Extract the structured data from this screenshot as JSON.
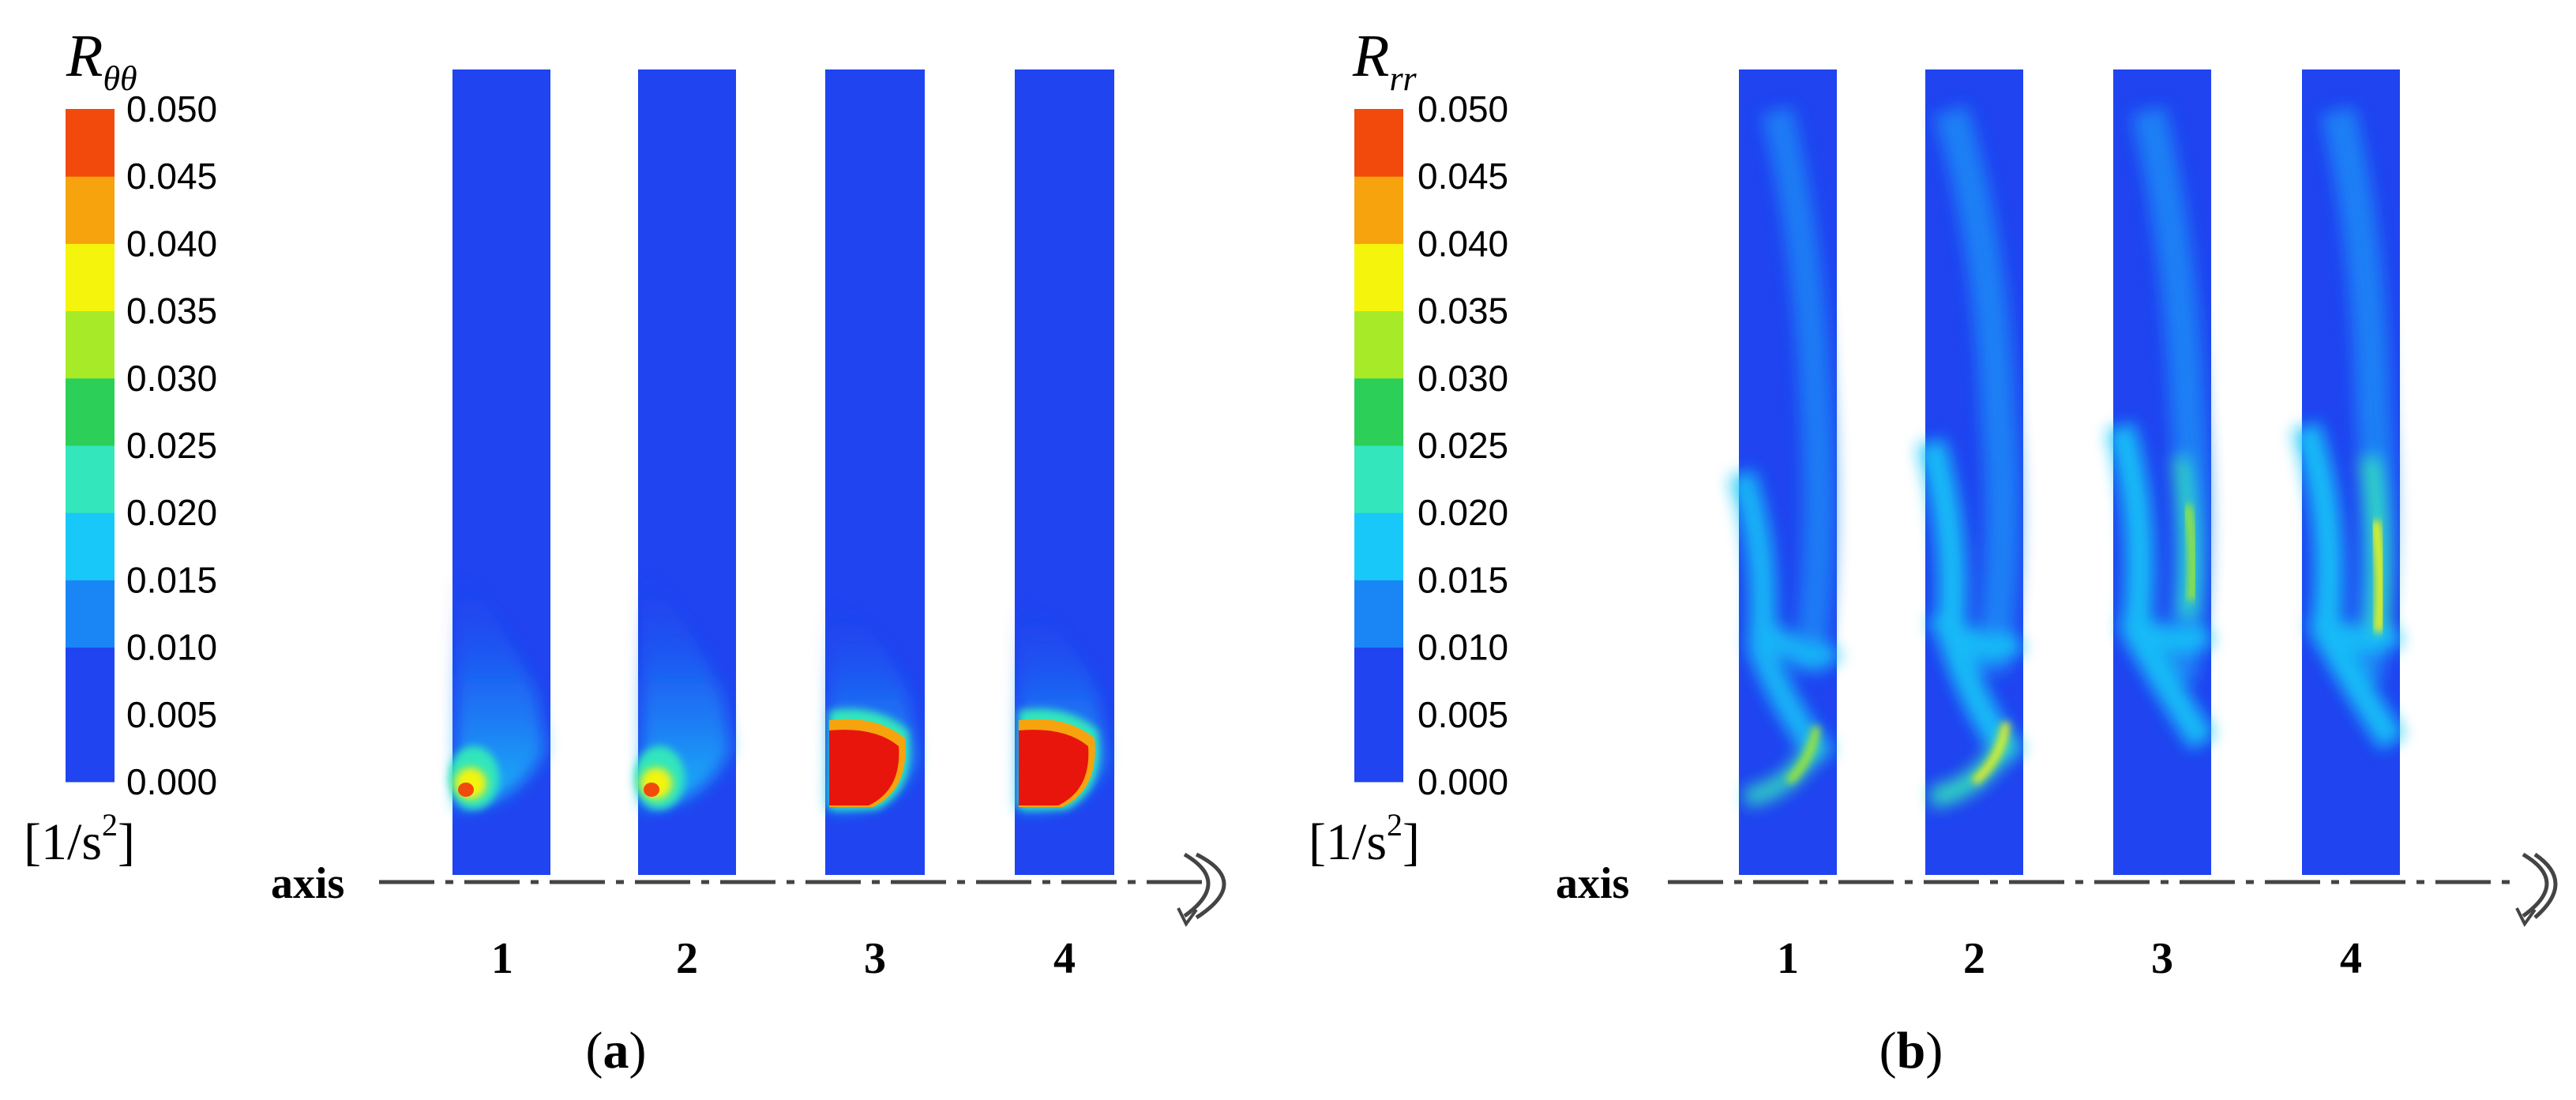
{
  "colorbar_colors": [
    "#1f44f0",
    "#1a86f6",
    "#18c8f8",
    "#33e6bc",
    "#2ccf58",
    "#a6ea28",
    "#f4f40c",
    "#f6a30e",
    "#f24a0c"
  ],
  "panels": [
    {
      "symbol_main": "R",
      "symbol_sub": "θθ",
      "unit_open": "[1/s",
      "unit_exp": "2",
      "unit_close": "]",
      "axis_label": "axis",
      "caption_open": "(",
      "caption_letter": "a",
      "caption_close": ")",
      "tick_labels": [
        "0.000",
        "0.005",
        "0.010",
        "0.015",
        "0.020",
        "0.025",
        "0.030",
        "0.035",
        "0.040",
        "0.045",
        "0.050"
      ],
      "strip_labels": [
        "1",
        "2",
        "3",
        "4"
      ]
    },
    {
      "symbol_main": "R",
      "symbol_sub": "rr",
      "unit_open": "[1/s",
      "unit_exp": "2",
      "unit_close": "]",
      "axis_label": "axis",
      "caption_open": "(",
      "caption_letter": "b",
      "caption_close": ")",
      "tick_labels": [
        "0.000",
        "0.005",
        "0.010",
        "0.015",
        "0.020",
        "0.025",
        "0.030",
        "0.035",
        "0.040",
        "0.045",
        "0.050"
      ],
      "strip_labels": [
        "1",
        "2",
        "3",
        "4"
      ]
    }
  ],
  "chart_data": [
    {
      "type": "heatmap",
      "title": "",
      "quantity": "Rθθ",
      "unit": "[1/s2]",
      "colorbar_range": [
        0.0,
        0.05
      ],
      "colorbar_step": 0.005,
      "background_level": 0.0,
      "cases": [
        "1",
        "2",
        "3",
        "4"
      ],
      "near_axis_peak_level": [
        0.05,
        0.05,
        0.05,
        0.05
      ]
    },
    {
      "type": "heatmap",
      "title": "",
      "quantity": "Rrr",
      "unit": "[1/s2]",
      "colorbar_range": [
        0.0,
        0.05
      ],
      "colorbar_step": 0.005,
      "background_level": 0.0,
      "cases": [
        "1",
        "2",
        "3",
        "4"
      ],
      "mid_height_peak_level": [
        0.02,
        0.025,
        0.025,
        0.03
      ]
    }
  ]
}
